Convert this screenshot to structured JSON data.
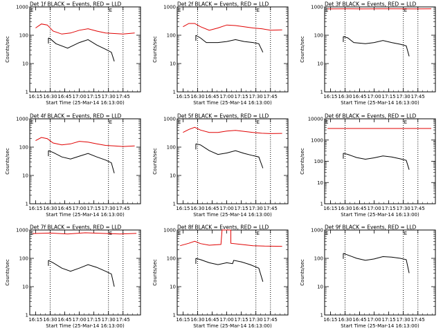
{
  "page": {
    "background": "#ffffff"
  },
  "colors": {
    "events": "#000000",
    "lld": "#e00000",
    "frame": "#000000"
  },
  "chart_data": [
    {
      "type": "line",
      "panel": 0,
      "title": "Det 1f BLACK = Events, RED = LLD",
      "xlabel": "Start Time (25-Mar-14 16:13:00)",
      "ylabel": "Counts/sec",
      "yscale": "log",
      "ylim": [
        1,
        1000
      ],
      "y_ticks": [
        "1",
        "10",
        "100",
        "1000"
      ],
      "x_ticks": [
        "16:15",
        "16:30",
        "16:45",
        "17:00",
        "17:15",
        "17:30",
        "17:45"
      ],
      "vlines": [
        "16:30",
        "17:30",
        "17:45"
      ],
      "markers": [
        "E",
        "E"
      ],
      "series": [
        {
          "color": "#000000",
          "points": [
            [
              16.47,
              80
            ],
            [
              16.5,
              75
            ],
            [
              16.6,
              50
            ],
            [
              16.8,
              35
            ],
            [
              17.0,
              55
            ],
            [
              17.15,
              70
            ],
            [
              17.3,
              45
            ],
            [
              17.45,
              32
            ],
            [
              17.55,
              25
            ],
            [
              17.6,
              12
            ]
          ]
        },
        {
          "color": "#e00000",
          "points": [
            [
              16.25,
              180
            ],
            [
              16.35,
              250
            ],
            [
              16.45,
              230
            ],
            [
              16.55,
              140
            ],
            [
              16.7,
              110
            ],
            [
              16.85,
              120
            ],
            [
              17.0,
              150
            ],
            [
              17.15,
              170
            ],
            [
              17.3,
              140
            ],
            [
              17.45,
              120
            ],
            [
              17.6,
              115
            ],
            [
              17.75,
              110
            ],
            [
              17.95,
              120
            ]
          ]
        }
      ]
    },
    {
      "type": "line",
      "panel": 1,
      "title": "Det 2f BLACK = Events, RED = LLD",
      "xlabel": "Start Time (25-Mar-14 16:13:00)",
      "ylabel": "Counts/sec",
      "yscale": "log",
      "ylim": [
        1,
        1000
      ],
      "y_ticks": [
        "1",
        "10",
        "100",
        "1000"
      ],
      "x_ticks": [
        "16:15",
        "16:30",
        "16:45",
        "17:00",
        "17:15",
        "17:30",
        "17:45"
      ],
      "vlines": [
        "16:30",
        "17:30",
        "17:45"
      ],
      "markers": [
        "E",
        "E"
      ],
      "series": [
        {
          "color": "#000000",
          "points": [
            [
              16.47,
              100
            ],
            [
              16.55,
              80
            ],
            [
              16.65,
              55
            ],
            [
              16.85,
              55
            ],
            [
              17.0,
              60
            ],
            [
              17.15,
              70
            ],
            [
              17.3,
              60
            ],
            [
              17.45,
              55
            ],
            [
              17.55,
              50
            ],
            [
              17.62,
              25
            ]
          ]
        },
        {
          "color": "#e00000",
          "points": [
            [
              16.25,
              200
            ],
            [
              16.35,
              260
            ],
            [
              16.45,
              260
            ],
            [
              16.55,
              200
            ],
            [
              16.7,
              150
            ],
            [
              16.85,
              180
            ],
            [
              17.0,
              230
            ],
            [
              17.15,
              220
            ],
            [
              17.3,
              200
            ],
            [
              17.45,
              180
            ],
            [
              17.6,
              170
            ],
            [
              17.75,
              150
            ],
            [
              17.95,
              155
            ]
          ]
        }
      ]
    },
    {
      "type": "line",
      "panel": 2,
      "title": "Det 3f BLACK = Events, RED = LLD",
      "xlabel": "Start Time (25-Mar-14 16:13:00)",
      "ylabel": "Counts/sec",
      "yscale": "log",
      "ylim": [
        1,
        1000
      ],
      "y_ticks": [
        "1",
        "10",
        "100",
        "1000"
      ],
      "x_ticks": [
        "16:15",
        "16:30",
        "16:45",
        "17:00",
        "17:15",
        "17:30",
        "17:45"
      ],
      "vlines": [
        "16:30",
        "17:30",
        "17:45"
      ],
      "markers": [
        "E",
        "E"
      ],
      "series": [
        {
          "color": "#000000",
          "points": [
            [
              16.47,
              90
            ],
            [
              16.55,
              80
            ],
            [
              16.65,
              55
            ],
            [
              16.85,
              50
            ],
            [
              17.0,
              55
            ],
            [
              17.15,
              65
            ],
            [
              17.3,
              55
            ],
            [
              17.45,
              48
            ],
            [
              17.55,
              42
            ],
            [
              17.6,
              18
            ]
          ]
        },
        {
          "color": "#e00000",
          "points": [
            [
              16.2,
              850
            ],
            [
              16.5,
              860
            ],
            [
              16.8,
              850
            ],
            [
              17.1,
              860
            ],
            [
              17.4,
              855
            ],
            [
              17.7,
              850
            ],
            [
              17.98,
              855
            ]
          ]
        }
      ]
    },
    {
      "type": "line",
      "panel": 3,
      "title": "Det 4f BLACK = Events, RED = LLD",
      "xlabel": "Start Time (25-Mar-14 16:13:00)",
      "ylabel": "Counts/sec",
      "yscale": "log",
      "ylim": [
        1,
        1000
      ],
      "y_ticks": [
        "1",
        "10",
        "100",
        "1000"
      ],
      "x_ticks": [
        "16:15",
        "16:30",
        "16:45",
        "17:00",
        "17:15",
        "17:30",
        "17:45"
      ],
      "vlines": [
        "16:30",
        "17:30",
        "17:45"
      ],
      "markers": [
        "E",
        "E"
      ],
      "series": [
        {
          "color": "#000000",
          "points": [
            [
              16.47,
              75
            ],
            [
              16.55,
              65
            ],
            [
              16.7,
              45
            ],
            [
              16.85,
              38
            ],
            [
              17.0,
              48
            ],
            [
              17.15,
              60
            ],
            [
              17.3,
              45
            ],
            [
              17.45,
              35
            ],
            [
              17.55,
              28
            ],
            [
              17.6,
              12
            ]
          ]
        },
        {
          "color": "#e00000",
          "points": [
            [
              16.25,
              170
            ],
            [
              16.35,
              220
            ],
            [
              16.45,
              200
            ],
            [
              16.55,
              140
            ],
            [
              16.7,
              120
            ],
            [
              16.85,
              130
            ],
            [
              17.0,
              160
            ],
            [
              17.15,
              150
            ],
            [
              17.3,
              130
            ],
            [
              17.45,
              115
            ],
            [
              17.6,
              110
            ],
            [
              17.75,
              105
            ],
            [
              17.95,
              110
            ]
          ]
        }
      ]
    },
    {
      "type": "line",
      "panel": 4,
      "title": "Det 5f BLACK = Events, RED = LLD",
      "xlabel": "Start Time (25-Mar-14 16:13:00)",
      "ylabel": "Counts/sec",
      "yscale": "log",
      "ylim": [
        1,
        1000
      ],
      "y_ticks": [
        "1",
        "10",
        "100",
        "1000"
      ],
      "x_ticks": [
        "16:15",
        "16:30",
        "16:45",
        "17:00",
        "17:15",
        "17:30",
        "17:45"
      ],
      "vlines": [
        "16:30",
        "17:30",
        "17:45"
      ],
      "markers": [
        "E",
        "E"
      ],
      "series": [
        {
          "color": "#000000",
          "points": [
            [
              16.47,
              130
            ],
            [
              16.55,
              120
            ],
            [
              16.7,
              75
            ],
            [
              16.85,
              55
            ],
            [
              17.0,
              62
            ],
            [
              17.15,
              75
            ],
            [
              17.3,
              60
            ],
            [
              17.45,
              50
            ],
            [
              17.55,
              45
            ],
            [
              17.62,
              18
            ]
          ]
        },
        {
          "color": "#e00000",
          "points": [
            [
              16.25,
              330
            ],
            [
              16.35,
              420
            ],
            [
              16.45,
              500
            ],
            [
              16.55,
              400
            ],
            [
              16.7,
              330
            ],
            [
              16.85,
              330
            ],
            [
              17.0,
              370
            ],
            [
              17.15,
              390
            ],
            [
              17.3,
              360
            ],
            [
              17.45,
              330
            ],
            [
              17.6,
              310
            ],
            [
              17.75,
              300
            ],
            [
              17.95,
              305
            ]
          ]
        }
      ]
    },
    {
      "type": "line",
      "panel": 5,
      "title": "Det 6f BLACK = Events, RED = LLD",
      "xlabel": "Start Time (25-Mar-14 16:13:00)",
      "ylabel": "Counts/sec",
      "yscale": "log",
      "ylim": [
        1,
        10000
      ],
      "y_ticks": [
        "1",
        "10",
        "100",
        "1000",
        "10000"
      ],
      "x_ticks": [
        "16:15",
        "16:30",
        "16:45",
        "17:00",
        "17:15",
        "17:30",
        "17:45"
      ],
      "vlines": [
        "16:30",
        "17:30",
        "17:45"
      ],
      "markers": [
        "E",
        "E"
      ],
      "series": [
        {
          "color": "#000000",
          "points": [
            [
              16.47,
              240
            ],
            [
              16.55,
              210
            ],
            [
              16.7,
              150
            ],
            [
              16.85,
              125
            ],
            [
              17.0,
              145
            ],
            [
              17.15,
              180
            ],
            [
              17.3,
              160
            ],
            [
              17.45,
              130
            ],
            [
              17.55,
              110
            ],
            [
              17.6,
              40
            ]
          ]
        },
        {
          "color": "#e00000",
          "points": [
            [
              16.2,
              3500
            ],
            [
              17.98,
              3500
            ]
          ]
        }
      ]
    },
    {
      "type": "line",
      "panel": 6,
      "title": "Det 7f BLACK = Events, RED = LLD",
      "xlabel": "Start Time (25-Mar-14 16:13:00)",
      "ylabel": "Counts/sec",
      "yscale": "log",
      "ylim": [
        1,
        1000
      ],
      "y_ticks": [
        "1",
        "10",
        "100",
        "1000"
      ],
      "x_ticks": [
        "16:15",
        "16:30",
        "16:45",
        "17:00",
        "17:15",
        "17:30",
        "17:45"
      ],
      "vlines": [
        "16:30",
        "17:30",
        "17:45"
      ],
      "markers": [
        "E",
        "E"
      ],
      "series": [
        {
          "color": "#000000",
          "points": [
            [
              16.47,
              85
            ],
            [
              16.55,
              70
            ],
            [
              16.7,
              45
            ],
            [
              16.85,
              35
            ],
            [
              17.0,
              45
            ],
            [
              17.15,
              60
            ],
            [
              17.3,
              48
            ],
            [
              17.45,
              35
            ],
            [
              17.55,
              28
            ],
            [
              17.6,
              10
            ]
          ]
        },
        {
          "color": "#e00000",
          "points": [
            [
              16.2,
              750
            ],
            [
              16.5,
              780
            ],
            [
              16.8,
              720
            ],
            [
              17.1,
              800
            ],
            [
              17.4,
              760
            ],
            [
              17.7,
              720
            ],
            [
              17.98,
              760
            ]
          ]
        }
      ]
    },
    {
      "type": "line",
      "panel": 7,
      "title": "Det 8f BLACK = Events, RED = LLD",
      "xlabel": "Start Time (25-Mar-14 16:13:00)",
      "ylabel": "Counts/sec",
      "yscale": "log",
      "ylim": [
        1,
        1000
      ],
      "y_ticks": [
        "1",
        "10",
        "100",
        "1000"
      ],
      "x_ticks": [
        "16:15",
        "16:30",
        "16:45",
        "17:00",
        "17:15",
        "17:30",
        "17:45"
      ],
      "vlines": [
        "16:30",
        "17:30",
        "17:45"
      ],
      "markers": [
        "E",
        "E"
      ],
      "series": [
        {
          "color": "#000000",
          "points": [
            [
              16.47,
              100
            ],
            [
              16.55,
              90
            ],
            [
              16.7,
              70
            ],
            [
              16.85,
              60
            ],
            [
              17.0,
              70
            ],
            [
              17.1,
              65
            ],
            [
              17.12,
              85
            ],
            [
              17.25,
              75
            ],
            [
              17.4,
              60
            ],
            [
              17.55,
              45
            ],
            [
              17.62,
              15
            ]
          ]
        },
        {
          "color": "#e00000",
          "points": [
            [
              16.2,
              280
            ],
            [
              16.35,
              340
            ],
            [
              16.45,
              400
            ],
            [
              16.55,
              330
            ],
            [
              16.7,
              290
            ],
            [
              16.9,
              310
            ],
            [
              16.92,
              1000
            ],
            [
              17.07,
              1000
            ],
            [
              17.07,
              340
            ],
            [
              17.25,
              310
            ],
            [
              17.45,
              280
            ],
            [
              17.65,
              270
            ],
            [
              17.95,
              265
            ]
          ]
        }
      ]
    },
    {
      "type": "line",
      "panel": 8,
      "title": "Det 9f BLACK = Events, RED = LLD",
      "xlabel": "Start Time (25-Mar-14 16:13:00)",
      "ylabel": "Counts/sec",
      "yscale": "log",
      "ylim": [
        1,
        1000
      ],
      "y_ticks": [
        "1",
        "10",
        "100",
        "1000"
      ],
      "x_ticks": [
        "16:15",
        "16:30",
        "16:45",
        "17:00",
        "17:15",
        "17:30",
        "17:45"
      ],
      "vlines": [
        "16:30",
        "17:30",
        "17:45"
      ],
      "markers": [
        "E",
        "E"
      ],
      "series": [
        {
          "color": "#000000",
          "points": [
            [
              16.47,
              150
            ],
            [
              16.55,
              130
            ],
            [
              16.7,
              100
            ],
            [
              16.85,
              85
            ],
            [
              17.0,
              95
            ],
            [
              17.15,
              115
            ],
            [
              17.3,
              110
            ],
            [
              17.45,
              100
            ],
            [
              17.55,
              90
            ],
            [
              17.6,
              30
            ]
          ]
        }
      ]
    }
  ]
}
